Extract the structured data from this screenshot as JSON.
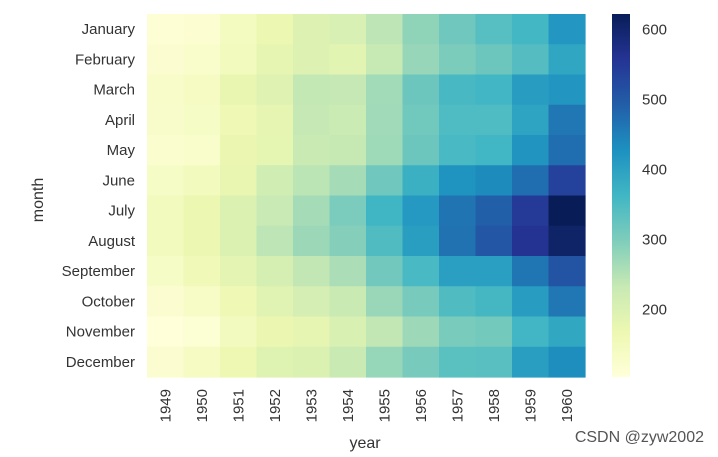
{
  "watermark": "CSDN @zyw2002",
  "chart_data": {
    "type": "heatmap",
    "title": "",
    "xlabel": "year",
    "ylabel": "month",
    "x_categories": [
      "1949",
      "1950",
      "1951",
      "1952",
      "1953",
      "1954",
      "1955",
      "1956",
      "1957",
      "1958",
      "1959",
      "1960"
    ],
    "y_categories": [
      "January",
      "February",
      "March",
      "April",
      "May",
      "June",
      "July",
      "August",
      "September",
      "October",
      "November",
      "December"
    ],
    "values": [
      [
        112,
        115,
        145,
        171,
        196,
        204,
        242,
        284,
        315,
        340,
        360,
        417
      ],
      [
        118,
        126,
        150,
        180,
        196,
        188,
        233,
        277,
        301,
        318,
        342,
        391
      ],
      [
        132,
        141,
        178,
        193,
        236,
        235,
        267,
        317,
        356,
        362,
        406,
        419
      ],
      [
        129,
        135,
        163,
        181,
        235,
        227,
        269,
        313,
        348,
        348,
        396,
        461
      ],
      [
        121,
        125,
        172,
        183,
        229,
        234,
        270,
        318,
        355,
        363,
        420,
        472
      ],
      [
        135,
        149,
        178,
        218,
        243,
        264,
        315,
        374,
        422,
        435,
        472,
        535
      ],
      [
        148,
        170,
        199,
        230,
        264,
        302,
        364,
        413,
        465,
        491,
        548,
        622
      ],
      [
        148,
        170,
        199,
        242,
        272,
        293,
        347,
        405,
        467,
        505,
        559,
        606
      ],
      [
        136,
        158,
        184,
        209,
        237,
        259,
        312,
        355,
        404,
        404,
        463,
        508
      ],
      [
        119,
        133,
        162,
        191,
        211,
        229,
        274,
        306,
        347,
        359,
        407,
        461
      ],
      [
        104,
        114,
        146,
        172,
        180,
        203,
        237,
        271,
        305,
        310,
        362,
        390
      ],
      [
        118,
        140,
        166,
        194,
        201,
        229,
        278,
        306,
        336,
        337,
        405,
        432
      ]
    ],
    "colormap": "YlGnBu",
    "vmin": 104,
    "vmax": 622,
    "colorbar_ticks": [
      200,
      300,
      400,
      500,
      600
    ],
    "grid": false
  }
}
